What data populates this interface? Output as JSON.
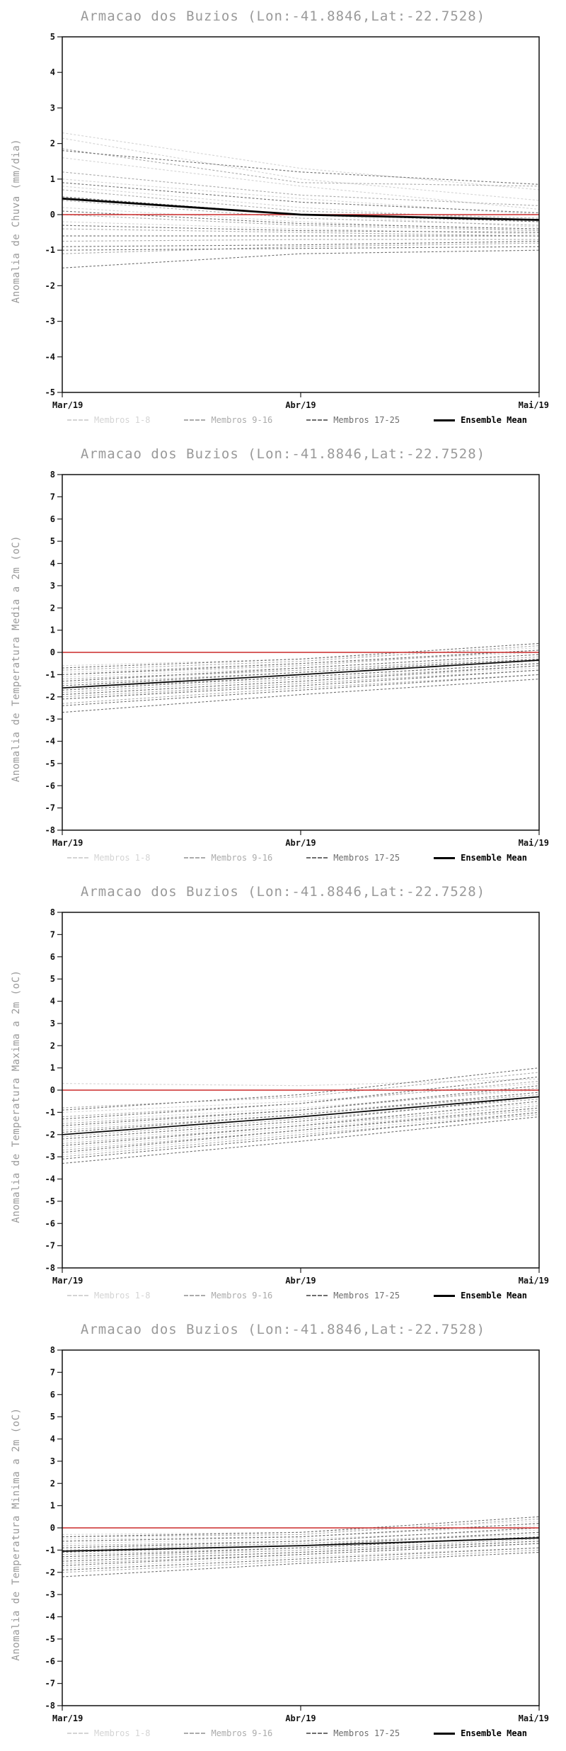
{
  "colors": {
    "reference_line": "#cc2a2a",
    "ensemble_mean": "#000000",
    "members_1_8": "#d4d4d4",
    "members_9_16": "#ababab",
    "members_17_25": "#6e6e6e",
    "title_text": "#999999",
    "axis_text": "#111111"
  },
  "legend": {
    "items": [
      {
        "label": "Membros 1-8",
        "color": "#d4d4d4",
        "style": "dashed"
      },
      {
        "label": "Membros 9-16",
        "color": "#ababab",
        "style": "dashed"
      },
      {
        "label": "Membros 17-25",
        "color": "#6e6e6e",
        "style": "dashed"
      },
      {
        "label": "Ensemble Mean",
        "color": "#000000",
        "style": "solid"
      }
    ]
  },
  "chart_data": [
    {
      "type": "line",
      "title": "Armacao dos Buzios (Lon:-41.8846,Lat:-22.7528)",
      "ylabel": "Anomalia de Chuva (mm/dia)",
      "x": [
        "Mar/19",
        "Abr/19",
        "Mai/19"
      ],
      "ylim": [
        -5,
        5
      ],
      "ytick": 1,
      "grid": false,
      "legend_position": "bottom",
      "reference_value": 0,
      "ensemble_mean": [
        0.45,
        0.0,
        -0.15
      ],
      "groups": [
        {
          "name": "Membros 1-8",
          "color": "#d4d4d4",
          "members": [
            [
              2.3,
              1.3,
              0.7
            ],
            [
              2.15,
              1.0,
              0.4
            ],
            [
              1.6,
              0.8,
              0.15
            ],
            [
              1.0,
              0.45,
              0.0
            ],
            [
              0.8,
              0.2,
              -0.2
            ],
            [
              0.5,
              0.0,
              -0.35
            ],
            [
              0.2,
              -0.2,
              -0.45
            ],
            [
              -0.2,
              -0.4,
              -0.55
            ]
          ]
        },
        {
          "name": "Membros 9-16",
          "color": "#ababab",
          "members": [
            [
              1.85,
              0.9,
              0.8
            ],
            [
              1.2,
              0.55,
              0.25
            ],
            [
              0.7,
              0.1,
              -0.1
            ],
            [
              0.4,
              -0.1,
              -0.3
            ],
            [
              0.0,
              -0.3,
              -0.45
            ],
            [
              -0.4,
              -0.5,
              -0.6
            ],
            [
              -0.75,
              -0.7,
              -0.7
            ],
            [
              -1.1,
              -0.9,
              -0.8
            ]
          ]
        },
        {
          "name": "Membros 17-25",
          "color": "#6e6e6e",
          "members": [
            [
              1.8,
              1.2,
              0.85
            ],
            [
              0.9,
              0.35,
              0.05
            ],
            [
              0.5,
              0.0,
              -0.2
            ],
            [
              0.1,
              -0.25,
              -0.4
            ],
            [
              -0.3,
              -0.45,
              -0.5
            ],
            [
              -0.6,
              -0.6,
              -0.6
            ],
            [
              -0.9,
              -0.85,
              -0.75
            ],
            [
              -1.0,
              -0.95,
              -0.9
            ],
            [
              -1.5,
              -1.1,
              -1.0
            ]
          ]
        }
      ]
    },
    {
      "type": "line",
      "title": "Armacao dos Buzios (Lon:-41.8846,Lat:-22.7528)",
      "ylabel": "Anomalia de Temperatura Media a 2m (oC)",
      "x": [
        "Mar/19",
        "Abr/19",
        "Mai/19"
      ],
      "ylim": [
        -8,
        8
      ],
      "ytick": 1,
      "grid": false,
      "legend_position": "bottom",
      "reference_value": 0,
      "ensemble_mean": [
        -1.6,
        -1.0,
        -0.35
      ],
      "groups": [
        {
          "name": "Membros 1-8",
          "color": "#d4d4d4",
          "members": [
            [
              -0.6,
              -0.3,
              0.2
            ],
            [
              -0.9,
              -0.5,
              0.0
            ],
            [
              -1.1,
              -0.7,
              -0.1
            ],
            [
              -1.3,
              -0.8,
              -0.3
            ],
            [
              -1.5,
              -1.0,
              -0.4
            ],
            [
              -1.7,
              -1.1,
              -0.5
            ],
            [
              -1.9,
              -1.3,
              -0.7
            ],
            [
              -2.1,
              -1.4,
              -0.8
            ]
          ]
        },
        {
          "name": "Membros 9-16",
          "color": "#ababab",
          "members": [
            [
              -0.8,
              -0.4,
              0.3
            ],
            [
              -1.0,
              -0.6,
              0.1
            ],
            [
              -1.2,
              -0.8,
              -0.2
            ],
            [
              -1.4,
              -0.9,
              -0.3
            ],
            [
              -1.6,
              -1.1,
              -0.5
            ],
            [
              -1.8,
              -1.2,
              -0.6
            ],
            [
              -2.0,
              -1.4,
              -0.8
            ],
            [
              -2.3,
              -1.6,
              -1.0
            ]
          ]
        },
        {
          "name": "Membros 17-25",
          "color": "#6e6e6e",
          "members": [
            [
              -0.7,
              -0.3,
              0.4
            ],
            [
              -1.0,
              -0.5,
              0.1
            ],
            [
              -1.3,
              -0.7,
              -0.1
            ],
            [
              -1.5,
              -0.9,
              -0.3
            ],
            [
              -1.7,
              -1.1,
              -0.5
            ],
            [
              -1.9,
              -1.3,
              -0.6
            ],
            [
              -2.1,
              -1.5,
              -0.8
            ],
            [
              -2.4,
              -1.7,
              -1.0
            ],
            [
              -2.7,
              -1.9,
              -1.2
            ]
          ]
        }
      ]
    },
    {
      "type": "line",
      "title": "Armacao dos Buzios (Lon:-41.8846,Lat:-22.7528)",
      "ylabel": "Anomalia de Temperatura Maxima a 2m (oC)",
      "x": [
        "Mar/19",
        "Abr/19",
        "Mai/19"
      ],
      "ylim": [
        -8,
        8
      ],
      "ytick": 1,
      "grid": false,
      "legend_position": "bottom",
      "reference_value": 0,
      "ensemble_mean": [
        -2.0,
        -1.2,
        -0.3
      ],
      "groups": [
        {
          "name": "Membros 1-8",
          "color": "#d4d4d4",
          "members": [
            [
              0.3,
              0.2,
              0.5
            ],
            [
              -1.0,
              -0.5,
              0.3
            ],
            [
              -1.4,
              -0.8,
              0.0
            ],
            [
              -1.7,
              -1.0,
              -0.2
            ],
            [
              -2.0,
              -1.2,
              -0.4
            ],
            [
              -2.3,
              -1.5,
              -0.6
            ],
            [
              -2.6,
              -1.7,
              -0.8
            ],
            [
              -2.9,
              -1.9,
              -1.0
            ]
          ]
        },
        {
          "name": "Membros 9-16",
          "color": "#ababab",
          "members": [
            [
              -0.8,
              -0.3,
              0.8
            ],
            [
              -1.2,
              -0.6,
              0.4
            ],
            [
              -1.5,
              -0.9,
              0.1
            ],
            [
              -1.8,
              -1.1,
              -0.2
            ],
            [
              -2.1,
              -1.3,
              -0.4
            ],
            [
              -2.4,
              -1.6,
              -0.7
            ],
            [
              -2.7,
              -1.8,
              -0.9
            ],
            [
              -3.0,
              -2.0,
              -1.1
            ]
          ]
        },
        {
          "name": "Membros 17-25",
          "color": "#6e6e6e",
          "members": [
            [
              -0.9,
              -0.2,
              1.0
            ],
            [
              -1.3,
              -0.6,
              0.6
            ],
            [
              -1.6,
              -0.9,
              0.2
            ],
            [
              -1.9,
              -1.1,
              -0.1
            ],
            [
              -2.2,
              -1.4,
              -0.3
            ],
            [
              -2.5,
              -1.6,
              -0.5
            ],
            [
              -2.8,
              -1.8,
              -0.8
            ],
            [
              -3.1,
              -2.1,
              -1.0
            ],
            [
              -3.3,
              -2.3,
              -1.2
            ]
          ]
        }
      ]
    },
    {
      "type": "line",
      "title": "Armacao dos Buzios (Lon:-41.8846,Lat:-22.7528)",
      "ylabel": "Anomalia de Temperatura Minima a 2m (oC)",
      "x": [
        "Mar/19",
        "Abr/19",
        "Mai/19"
      ],
      "ylim": [
        -8,
        8
      ],
      "ytick": 1,
      "grid": false,
      "legend_position": "bottom",
      "reference_value": 0,
      "ensemble_mean": [
        -1.05,
        -0.8,
        -0.45
      ],
      "groups": [
        {
          "name": "Membros 1-8",
          "color": "#d4d4d4",
          "members": [
            [
              -0.3,
              -0.2,
              0.3
            ],
            [
              -0.5,
              -0.4,
              0.1
            ],
            [
              -0.7,
              -0.5,
              -0.1
            ],
            [
              -0.9,
              -0.7,
              -0.3
            ],
            [
              -1.1,
              -0.8,
              -0.4
            ],
            [
              -1.3,
              -1.0,
              -0.6
            ],
            [
              -1.5,
              -1.1,
              -0.7
            ],
            [
              -1.8,
              -1.3,
              -0.9
            ]
          ]
        },
        {
          "name": "Membros 9-16",
          "color": "#ababab",
          "members": [
            [
              -0.4,
              -0.3,
              0.4
            ],
            [
              -0.6,
              -0.4,
              0.2
            ],
            [
              -0.8,
              -0.6,
              0.0
            ],
            [
              -1.0,
              -0.7,
              -0.2
            ],
            [
              -1.2,
              -0.9,
              -0.4
            ],
            [
              -1.4,
              -1.0,
              -0.5
            ],
            [
              -1.6,
              -1.2,
              -0.7
            ],
            [
              -2.0,
              -1.5,
              -1.0
            ]
          ]
        },
        {
          "name": "Membros 17-25",
          "color": "#6e6e6e",
          "members": [
            [
              -0.4,
              -0.2,
              0.5
            ],
            [
              -0.6,
              -0.4,
              0.2
            ],
            [
              -0.9,
              -0.6,
              0.0
            ],
            [
              -1.1,
              -0.8,
              -0.2
            ],
            [
              -1.3,
              -0.9,
              -0.4
            ],
            [
              -1.5,
              -1.1,
              -0.6
            ],
            [
              -1.7,
              -1.2,
              -0.7
            ],
            [
              -1.9,
              -1.4,
              -0.9
            ],
            [
              -2.2,
              -1.6,
              -1.1
            ]
          ]
        }
      ]
    }
  ]
}
